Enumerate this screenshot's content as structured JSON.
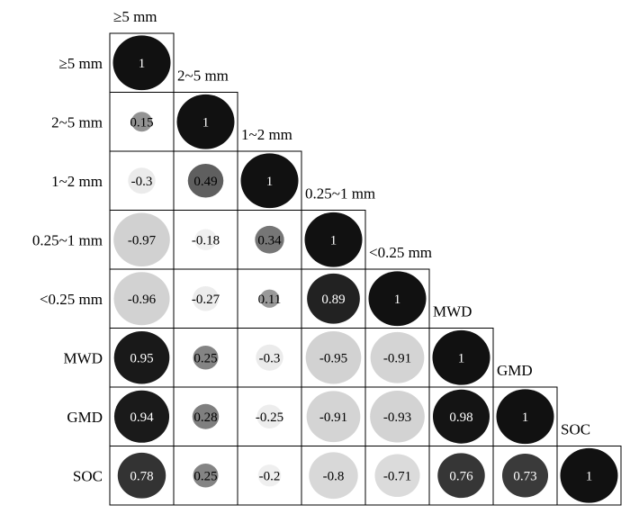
{
  "chart_data": {
    "type": "heatmap",
    "variables": [
      "≥5 mm",
      "2~5 mm",
      "1~2 mm",
      "0.25~1 mm",
      "<0.25 mm",
      "MWD",
      "GMD",
      "SOC"
    ],
    "matrix": [
      [
        1
      ],
      [
        0.15,
        1
      ],
      [
        -0.3,
        0.49,
        1
      ],
      [
        -0.97,
        -0.18,
        0.34,
        1
      ],
      [
        -0.96,
        -0.27,
        0.11,
        0.89,
        1
      ],
      [
        0.95,
        0.25,
        -0.3,
        -0.95,
        -0.91,
        1
      ],
      [
        0.94,
        0.28,
        -0.25,
        -0.91,
        -0.93,
        0.98,
        1
      ],
      [
        0.78,
        0.25,
        -0.2,
        -0.8,
        -0.71,
        0.76,
        0.73,
        1
      ]
    ],
    "value_labels": [
      [
        "1"
      ],
      [
        "0.15",
        "1"
      ],
      [
        "-0.3",
        "0.49",
        "1"
      ],
      [
        "-0.97",
        "-0.18",
        "0.34",
        "1"
      ],
      [
        "-0.96",
        "-0.27",
        "0.11",
        "0.89",
        "1"
      ],
      [
        "0.95",
        "0.25",
        "-0.3",
        "-0.95",
        "-0.91",
        "1"
      ],
      [
        "0.94",
        "0.28",
        "-0.25",
        "-0.91",
        "-0.93",
        "0.98",
        "1"
      ],
      [
        "0.78",
        "0.25",
        "-0.2",
        "-0.8",
        "-0.71",
        "0.76",
        "0.73",
        "1"
      ]
    ],
    "layout": "lower-triangle",
    "marker": "circle sized by |r|",
    "grid": true,
    "legend": "none",
    "colors": {
      "positive_max": "#111111",
      "positive_min": "#aaaaaa",
      "negative_max": "#d0d0d0",
      "negative_min": "#f7f7f7",
      "label_light": "#ffffff",
      "label_dark": "#000000"
    }
  }
}
